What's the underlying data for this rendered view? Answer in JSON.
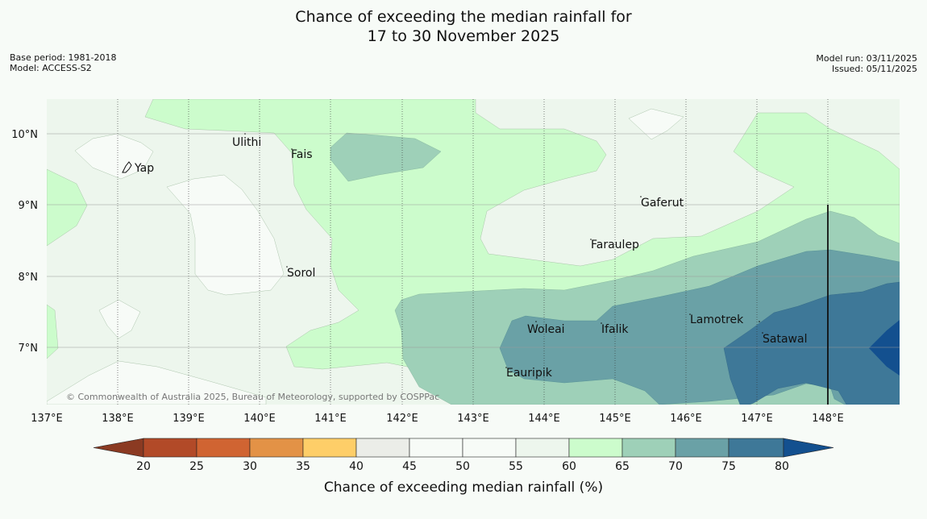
{
  "title": {
    "line1": "Chance of exceeding the median rainfall for",
    "line2": "17 to 30 November 2025"
  },
  "meta": {
    "base_period": "Base period: 1981-2018",
    "model": "Model: ACCESS-S2",
    "model_run": "Model run: 03/11/2025",
    "issued": "Issued: 05/11/2025"
  },
  "map": {
    "copyright": "© Commonwealth of Australia 2025, Bureau of Meteorology, supported by COSPPac",
    "lon_labels": [
      "137°E",
      "138°E",
      "139°E",
      "140°E",
      "141°E",
      "142°E",
      "143°E",
      "144°E",
      "145°E",
      "146°E",
      "147°E",
      "148°E"
    ],
    "lat_labels": [
      "10°N",
      "9°N",
      "8°N",
      "7°N"
    ],
    "places": [
      "Ulithi",
      "Fais",
      "Yap",
      "Gaferut",
      "Faraulep",
      "Sorol",
      "Lamotrek",
      "Woleai",
      "Ifalik",
      "Satawal",
      "Eauripik"
    ]
  },
  "legend": {
    "title": "Chance of exceeding median rainfall (%)",
    "ticks": [
      "20",
      "25",
      "30",
      "35",
      "40",
      "45",
      "50",
      "55",
      "60",
      "65",
      "70",
      "75",
      "80"
    ],
    "colors": {
      "below20": "#8b3a22",
      "20_25": "#b24a28",
      "25_30": "#d06432",
      "30_35": "#e39246",
      "35_40": "#fece68",
      "40_45": "#ebede8",
      "45_50": "#f7fbf7",
      "50_55": "#f7fbf7",
      "55_60": "#edf6ed",
      "60_65": "#ccfccc",
      "65_70": "#9ed0b8",
      "70_75": "#6aa1a6",
      "75_80": "#3e7898",
      "above80": "#13508f"
    }
  }
}
